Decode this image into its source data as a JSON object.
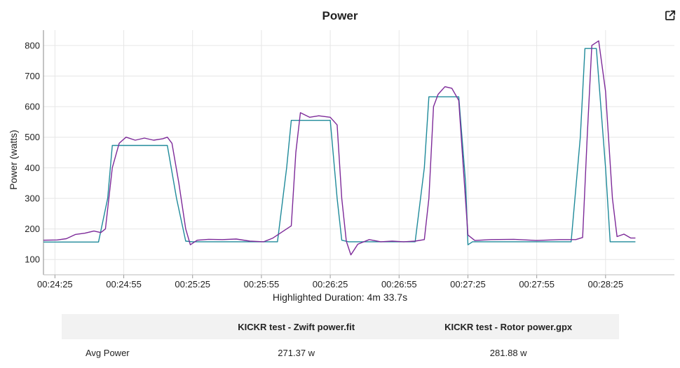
{
  "chart_data": {
    "type": "line",
    "title": "Power",
    "xlabel": "Highlighted Duration: 4m 33.7s",
    "ylabel": "Power (watts)",
    "x_start_seconds": 1460,
    "x_end_seconds": 1735,
    "ylim": [
      50,
      850
    ],
    "yticks": [
      100,
      200,
      300,
      400,
      500,
      600,
      700,
      800
    ],
    "xticks": [
      "00:24:25",
      "00:24:55",
      "00:25:25",
      "00:25:55",
      "00:26:25",
      "00:26:55",
      "00:27:25",
      "00:27:55",
      "00:28:25"
    ],
    "grid": true,
    "series": [
      {
        "name": "KICKR test - Zwift power.fit",
        "color": "#1f8a9a",
        "points": [
          [
            "00:24:20",
            157
          ],
          [
            "00:24:44",
            157
          ],
          [
            "00:24:48",
            300
          ],
          [
            "00:24:50",
            473
          ],
          [
            "00:25:14",
            473
          ],
          [
            "00:25:18",
            300
          ],
          [
            "00:25:22",
            160
          ],
          [
            "00:25:25",
            158
          ],
          [
            "00:26:02",
            158
          ],
          [
            "00:26:06",
            400
          ],
          [
            "00:26:08",
            555
          ],
          [
            "00:26:25",
            555
          ],
          [
            "00:26:28",
            300
          ],
          [
            "00:26:30",
            163
          ],
          [
            "00:26:33",
            158
          ],
          [
            "00:27:02",
            158
          ],
          [
            "00:27:06",
            400
          ],
          [
            "00:27:08",
            632
          ],
          [
            "00:27:21",
            632
          ],
          [
            "00:27:24",
            350
          ],
          [
            "00:27:25",
            148
          ],
          [
            "00:27:27",
            158
          ],
          [
            "00:28:10",
            158
          ],
          [
            "00:28:14",
            500
          ],
          [
            "00:28:16",
            790
          ],
          [
            "00:28:21",
            790
          ],
          [
            "00:28:25",
            400
          ],
          [
            "00:28:27",
            158
          ],
          [
            "00:28:38",
            158
          ]
        ]
      },
      {
        "name": "KICKR test - Rotor power.gpx",
        "color": "#7d2a99",
        "points": [
          [
            "00:24:20",
            163
          ],
          [
            "00:24:26",
            164
          ],
          [
            "00:24:30",
            168
          ],
          [
            "00:24:34",
            182
          ],
          [
            "00:24:38",
            186
          ],
          [
            "00:24:42",
            193
          ],
          [
            "00:24:45",
            188
          ],
          [
            "00:24:47",
            200
          ],
          [
            "00:24:50",
            400
          ],
          [
            "00:24:53",
            480
          ],
          [
            "00:24:56",
            500
          ],
          [
            "00:25:00",
            490
          ],
          [
            "00:25:04",
            497
          ],
          [
            "00:25:08",
            490
          ],
          [
            "00:25:12",
            495
          ],
          [
            "00:25:14",
            500
          ],
          [
            "00:25:16",
            480
          ],
          [
            "00:25:19",
            350
          ],
          [
            "00:25:22",
            200
          ],
          [
            "00:25:24",
            148
          ],
          [
            "00:25:27",
            163
          ],
          [
            "00:25:32",
            166
          ],
          [
            "00:25:38",
            165
          ],
          [
            "00:25:44",
            167
          ],
          [
            "00:25:50",
            160
          ],
          [
            "00:25:56",
            158
          ],
          [
            "00:26:00",
            170
          ],
          [
            "00:26:03",
            185
          ],
          [
            "00:26:08",
            210
          ],
          [
            "00:26:10",
            450
          ],
          [
            "00:26:12",
            580
          ],
          [
            "00:26:16",
            565
          ],
          [
            "00:26:20",
            570
          ],
          [
            "00:26:25",
            565
          ],
          [
            "00:26:28",
            540
          ],
          [
            "00:26:30",
            300
          ],
          [
            "00:26:32",
            160
          ],
          [
            "00:26:34",
            115
          ],
          [
            "00:26:37",
            150
          ],
          [
            "00:26:42",
            165
          ],
          [
            "00:26:47",
            158
          ],
          [
            "00:26:52",
            160
          ],
          [
            "00:26:57",
            158
          ],
          [
            "00:27:02",
            160
          ],
          [
            "00:27:06",
            165
          ],
          [
            "00:27:08",
            300
          ],
          [
            "00:27:10",
            600
          ],
          [
            "00:27:12",
            640
          ],
          [
            "00:27:15",
            665
          ],
          [
            "00:27:18",
            660
          ],
          [
            "00:27:21",
            620
          ],
          [
            "00:27:23",
            400
          ],
          [
            "00:27:25",
            180
          ],
          [
            "00:27:28",
            162
          ],
          [
            "00:27:35",
            165
          ],
          [
            "00:27:45",
            166
          ],
          [
            "00:27:55",
            162
          ],
          [
            "00:28:05",
            165
          ],
          [
            "00:28:12",
            165
          ],
          [
            "00:28:15",
            172
          ],
          [
            "00:28:17",
            500
          ],
          [
            "00:28:19",
            800
          ],
          [
            "00:28:22",
            815
          ],
          [
            "00:28:25",
            650
          ],
          [
            "00:28:28",
            300
          ],
          [
            "00:28:30",
            175
          ],
          [
            "00:28:33",
            183
          ],
          [
            "00:28:36",
            170
          ],
          [
            "00:28:38",
            170
          ]
        ]
      }
    ]
  },
  "ui": {
    "export_icon": "external-link-icon"
  },
  "stats": {
    "headers": [
      "",
      "KICKR test - Zwift power.fit",
      "KICKR test - Rotor power.gpx"
    ],
    "rows": [
      {
        "label": "Avg Power",
        "values": [
          "271.37 w",
          "281.88 w"
        ]
      }
    ]
  }
}
